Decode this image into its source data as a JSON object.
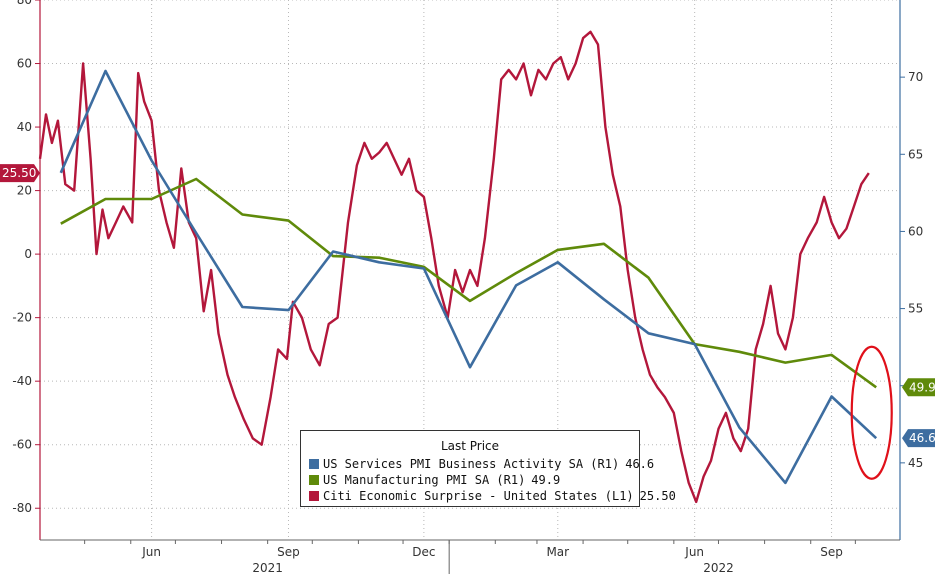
{
  "chart_data": {
    "type": "line",
    "left_axis": {
      "min": -90,
      "max": 80,
      "ticks": [
        80,
        60,
        40,
        20,
        0,
        -20,
        -40,
        -60,
        -80
      ],
      "label": "L1"
    },
    "right_axis": {
      "min": 40,
      "max": 75,
      "ticks": [
        70,
        65,
        60,
        55,
        50,
        45
      ],
      "label": "R1"
    },
    "x_axis": {
      "start": "2021-04-01",
      "end": "2022-10-31",
      "month_labels": [
        {
          "label": "Jun",
          "date": "2021-06-15"
        },
        {
          "label": "Sep",
          "date": "2021-09-15"
        },
        {
          "label": "Dec",
          "date": "2021-12-15"
        },
        {
          "label": "Mar",
          "date": "2022-03-15"
        },
        {
          "label": "Jun",
          "date": "2022-06-15"
        },
        {
          "label": "Sep",
          "date": "2022-09-15"
        }
      ],
      "year_labels": [
        {
          "label": "2021",
          "date": "2021-09-01"
        },
        {
          "label": "2022",
          "date": "2022-07-01"
        }
      ]
    },
    "grid": true,
    "legend": {
      "title": "Last Price",
      "entries": [
        {
          "name": "US Services PMI Business Activity SA  (R1)",
          "value": "46.6",
          "color": "#3d6da0"
        },
        {
          "name": "US Manufacturing PMI SA  (R1)",
          "value": "49.9",
          "color": "#5f8a0a"
        },
        {
          "name": "Citi Economic Surprise - United States  (L1)",
          "value": "25.50",
          "color": "#b3173b"
        }
      ]
    },
    "series": [
      {
        "name": "US Services PMI Business Activity SA",
        "axis": "right",
        "color": "#3d6da0",
        "last_label": "46.6",
        "points": [
          [
            "2021-04-15",
            63.8
          ],
          [
            "2021-05-15",
            70.4
          ],
          [
            "2021-06-15",
            64.6
          ],
          [
            "2021-07-15",
            59.9
          ],
          [
            "2021-08-15",
            55.1
          ],
          [
            "2021-09-15",
            54.9
          ],
          [
            "2021-10-15",
            58.7
          ],
          [
            "2021-11-15",
            58.0
          ],
          [
            "2021-12-15",
            57.6
          ],
          [
            "2022-01-15",
            51.2
          ],
          [
            "2022-02-15",
            56.5
          ],
          [
            "2022-03-15",
            58.0
          ],
          [
            "2022-04-15",
            55.6
          ],
          [
            "2022-05-15",
            53.4
          ],
          [
            "2022-06-15",
            52.7
          ],
          [
            "2022-07-15",
            47.3
          ],
          [
            "2022-08-15",
            43.7
          ],
          [
            "2022-09-15",
            49.3
          ],
          [
            "2022-10-15",
            46.6
          ]
        ]
      },
      {
        "name": "US Manufacturing PMI SA",
        "axis": "right",
        "color": "#5f8a0a",
        "last_label": "49.9",
        "points": [
          [
            "2021-04-15",
            60.5
          ],
          [
            "2021-05-15",
            62.1
          ],
          [
            "2021-06-15",
            62.1
          ],
          [
            "2021-07-15",
            63.4
          ],
          [
            "2021-08-15",
            61.1
          ],
          [
            "2021-09-15",
            60.7
          ],
          [
            "2021-10-15",
            58.4
          ],
          [
            "2021-11-15",
            58.3
          ],
          [
            "2021-12-15",
            57.7
          ],
          [
            "2022-01-15",
            55.5
          ],
          [
            "2022-02-15",
            57.3
          ],
          [
            "2022-03-15",
            58.8
          ],
          [
            "2022-04-15",
            59.2
          ],
          [
            "2022-05-15",
            57.0
          ],
          [
            "2022-06-15",
            52.7
          ],
          [
            "2022-07-15",
            52.2
          ],
          [
            "2022-08-15",
            51.5
          ],
          [
            "2022-09-15",
            52.0
          ],
          [
            "2022-10-15",
            49.9
          ]
        ]
      },
      {
        "name": "Citi Economic Surprise - United States",
        "axis": "left",
        "color": "#b3173b",
        "last_label": "25.50",
        "points": [
          [
            "2021-04-01",
            30
          ],
          [
            "2021-04-05",
            44
          ],
          [
            "2021-04-09",
            35
          ],
          [
            "2021-04-13",
            42
          ],
          [
            "2021-04-18",
            22
          ],
          [
            "2021-04-24",
            20
          ],
          [
            "2021-04-30",
            60
          ],
          [
            "2021-05-05",
            30
          ],
          [
            "2021-05-09",
            0
          ],
          [
            "2021-05-13",
            14
          ],
          [
            "2021-05-17",
            5
          ],
          [
            "2021-05-22",
            10
          ],
          [
            "2021-05-27",
            15
          ],
          [
            "2021-06-02",
            10
          ],
          [
            "2021-06-06",
            57
          ],
          [
            "2021-06-10",
            48
          ],
          [
            "2021-06-15",
            42
          ],
          [
            "2021-06-20",
            20
          ],
          [
            "2021-06-25",
            10
          ],
          [
            "2021-06-30",
            2
          ],
          [
            "2021-07-05",
            27
          ],
          [
            "2021-07-10",
            10
          ],
          [
            "2021-07-15",
            5
          ],
          [
            "2021-07-20",
            -18
          ],
          [
            "2021-07-25",
            -5
          ],
          [
            "2021-07-30",
            -25
          ],
          [
            "2021-08-05",
            -38
          ],
          [
            "2021-08-10",
            -45
          ],
          [
            "2021-08-16",
            -52
          ],
          [
            "2021-08-22",
            -58
          ],
          [
            "2021-08-28",
            -60
          ],
          [
            "2021-09-03",
            -45
          ],
          [
            "2021-09-08",
            -30
          ],
          [
            "2021-09-14",
            -33
          ],
          [
            "2021-09-18",
            -15
          ],
          [
            "2021-09-24",
            -20
          ],
          [
            "2021-09-30",
            -30
          ],
          [
            "2021-10-06",
            -35
          ],
          [
            "2021-10-12",
            -22
          ],
          [
            "2021-10-18",
            -20
          ],
          [
            "2021-10-25",
            10
          ],
          [
            "2021-10-31",
            28
          ],
          [
            "2021-11-05",
            35
          ],
          [
            "2021-11-10",
            30
          ],
          [
            "2021-11-15",
            32
          ],
          [
            "2021-11-20",
            35
          ],
          [
            "2021-11-25",
            30
          ],
          [
            "2021-11-30",
            25
          ],
          [
            "2021-12-05",
            30
          ],
          [
            "2021-12-10",
            20
          ],
          [
            "2021-12-15",
            18
          ],
          [
            "2021-12-20",
            5
          ],
          [
            "2021-12-25",
            -10
          ],
          [
            "2021-12-31",
            -20
          ],
          [
            "2022-01-05",
            -5
          ],
          [
            "2022-01-10",
            -12
          ],
          [
            "2022-01-15",
            -5
          ],
          [
            "2022-01-20",
            -10
          ],
          [
            "2022-01-25",
            5
          ],
          [
            "2022-01-31",
            30
          ],
          [
            "2022-02-05",
            55
          ],
          [
            "2022-02-10",
            58
          ],
          [
            "2022-02-15",
            55
          ],
          [
            "2022-02-20",
            60
          ],
          [
            "2022-02-25",
            50
          ],
          [
            "2022-03-02",
            58
          ],
          [
            "2022-03-07",
            55
          ],
          [
            "2022-03-12",
            60
          ],
          [
            "2022-03-17",
            62
          ],
          [
            "2022-03-22",
            55
          ],
          [
            "2022-03-27",
            60
          ],
          [
            "2022-04-01",
            68
          ],
          [
            "2022-04-06",
            70
          ],
          [
            "2022-04-11",
            66
          ],
          [
            "2022-04-16",
            40
          ],
          [
            "2022-04-21",
            25
          ],
          [
            "2022-04-26",
            15
          ],
          [
            "2022-05-01",
            -5
          ],
          [
            "2022-05-06",
            -20
          ],
          [
            "2022-05-11",
            -30
          ],
          [
            "2022-05-16",
            -38
          ],
          [
            "2022-05-21",
            -42
          ],
          [
            "2022-05-26",
            -45
          ],
          [
            "2022-06-01",
            -50
          ],
          [
            "2022-06-06",
            -62
          ],
          [
            "2022-06-11",
            -72
          ],
          [
            "2022-06-16",
            -78
          ],
          [
            "2022-06-21",
            -70
          ],
          [
            "2022-06-26",
            -65
          ],
          [
            "2022-07-01",
            -55
          ],
          [
            "2022-07-06",
            -50
          ],
          [
            "2022-07-11",
            -58
          ],
          [
            "2022-07-16",
            -62
          ],
          [
            "2022-07-21",
            -55
          ],
          [
            "2022-07-26",
            -30
          ],
          [
            "2022-07-31",
            -22
          ],
          [
            "2022-08-05",
            -10
          ],
          [
            "2022-08-10",
            -25
          ],
          [
            "2022-08-15",
            -30
          ],
          [
            "2022-08-20",
            -20
          ],
          [
            "2022-08-25",
            0
          ],
          [
            "2022-08-30",
            5
          ],
          [
            "2022-09-05",
            10
          ],
          [
            "2022-09-10",
            18
          ],
          [
            "2022-09-15",
            10
          ],
          [
            "2022-09-20",
            5
          ],
          [
            "2022-09-25",
            8
          ],
          [
            "2022-09-30",
            15
          ],
          [
            "2022-10-05",
            22
          ],
          [
            "2022-10-10",
            25.5
          ]
        ]
      }
    ],
    "annotation": {
      "type": "ellipse",
      "color": "#e0101a",
      "around": "last values of PMI series"
    }
  }
}
